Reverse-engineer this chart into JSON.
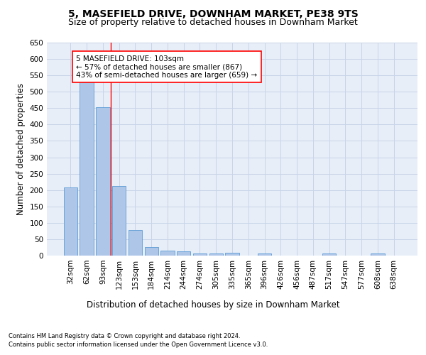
{
  "title": "5, MASEFIELD DRIVE, DOWNHAM MARKET, PE38 9TS",
  "subtitle": "Size of property relative to detached houses in Downham Market",
  "xlabel": "Distribution of detached houses by size in Downham Market",
  "ylabel": "Number of detached properties",
  "footnote1": "Contains HM Land Registry data © Crown copyright and database right 2024.",
  "footnote2": "Contains public sector information licensed under the Open Government Licence v3.0.",
  "categories": [
    "32sqm",
    "62sqm",
    "93sqm",
    "123sqm",
    "153sqm",
    "184sqm",
    "214sqm",
    "244sqm",
    "274sqm",
    "305sqm",
    "335sqm",
    "365sqm",
    "396sqm",
    "426sqm",
    "456sqm",
    "487sqm",
    "517sqm",
    "547sqm",
    "577sqm",
    "608sqm",
    "638sqm"
  ],
  "values": [
    208,
    530,
    452,
    212,
    78,
    26,
    15,
    12,
    7,
    7,
    9,
    0,
    6,
    0,
    0,
    0,
    6,
    0,
    0,
    6,
    0
  ],
  "bar_color": "#aec6e8",
  "bar_edge_color": "#5b9bd5",
  "annotation_box_text": "5 MASEFIELD DRIVE: 103sqm\n← 57% of detached houses are smaller (867)\n43% of semi-detached houses are larger (659) →",
  "red_line_x": 2.5,
  "ylim": [
    0,
    650
  ],
  "yticks": [
    0,
    50,
    100,
    150,
    200,
    250,
    300,
    350,
    400,
    450,
    500,
    550,
    600,
    650
  ],
  "grid_color": "#c8d4e8",
  "background_color": "#e8eef8",
  "title_fontsize": 10,
  "subtitle_fontsize": 9,
  "axis_label_fontsize": 8.5,
  "tick_fontsize": 7.5,
  "annotation_fontsize": 7.5
}
